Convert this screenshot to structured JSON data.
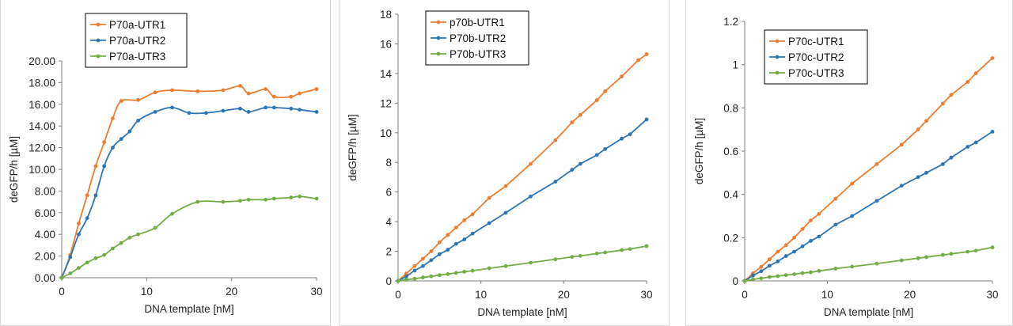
{
  "chart_data": [
    {
      "type": "line",
      "xlabel": "DNA template [nM]",
      "ylabel": "deGFP/h [µM]",
      "xlim": [
        0,
        30
      ],
      "ylim": [
        0,
        20
      ],
      "xticks": [
        0,
        10,
        20,
        30
      ],
      "yticks": [
        "0.00",
        "2.00",
        "4.00",
        "6.00",
        "8.00",
        "10.00",
        "12.00",
        "14.00",
        "16.00",
        "18.00",
        "20.00"
      ],
      "smooth": true,
      "legend": "top-left",
      "series": [
        {
          "name": "P70a-UTR1",
          "color": "#ed7d31",
          "x": [
            0,
            1,
            2,
            3,
            4,
            5,
            6,
            7,
            9,
            11,
            13,
            16,
            19,
            21,
            22,
            24,
            25,
            27,
            28,
            30
          ],
          "y": [
            0,
            2.1,
            5.0,
            7.6,
            10.3,
            12.5,
            14.7,
            16.3,
            16.4,
            17.1,
            17.3,
            17.2,
            17.3,
            17.7,
            17.0,
            17.4,
            16.7,
            16.7,
            17.0,
            17.4
          ]
        },
        {
          "name": "P70a-UTR2",
          "color": "#2e75b6",
          "x": [
            0,
            1,
            2,
            3,
            4,
            5,
            6,
            7,
            8,
            9,
            11,
            13,
            15,
            17,
            19,
            21,
            22,
            24,
            25,
            27,
            28,
            30
          ],
          "y": [
            0,
            1.9,
            4.0,
            5.5,
            7.6,
            10.3,
            12.0,
            12.8,
            13.5,
            14.5,
            15.3,
            15.7,
            15.2,
            15.2,
            15.4,
            15.6,
            15.3,
            15.7,
            15.7,
            15.6,
            15.5,
            15.3
          ]
        },
        {
          "name": "P70a-UTR3",
          "color": "#70ad47",
          "x": [
            0,
            1,
            2,
            3,
            4,
            5,
            6,
            7,
            8,
            9,
            11,
            13,
            16,
            19,
            21,
            22,
            24,
            25,
            27,
            28,
            30
          ],
          "y": [
            0,
            0.4,
            0.9,
            1.4,
            1.8,
            2.1,
            2.7,
            3.2,
            3.7,
            4.0,
            4.6,
            5.9,
            7.0,
            7.0,
            7.1,
            7.2,
            7.2,
            7.3,
            7.4,
            7.5,
            7.3
          ]
        }
      ]
    },
    {
      "type": "line",
      "xlabel": "DNA template [nM]",
      "ylabel": "deGFP/h [µM]",
      "xlim": [
        0,
        30
      ],
      "ylim": [
        0,
        18
      ],
      "xticks": [
        0,
        10,
        20,
        30
      ],
      "yticks": [
        "0",
        "2",
        "4",
        "6",
        "8",
        "10",
        "12",
        "14",
        "16",
        "18"
      ],
      "smooth": false,
      "legend": "top-left",
      "series": [
        {
          "name": "p70b-UTR1",
          "color": "#ed7d31",
          "x": [
            0,
            1,
            2,
            3,
            4,
            5,
            6,
            7,
            8,
            9,
            11,
            13,
            16,
            19,
            21,
            22,
            24,
            25,
            27,
            29,
            30
          ],
          "y": [
            0,
            0.5,
            1.0,
            1.5,
            2.0,
            2.6,
            3.1,
            3.6,
            4.1,
            4.5,
            5.6,
            6.4,
            7.9,
            9.5,
            10.7,
            11.2,
            12.2,
            12.8,
            13.8,
            14.9,
            15.3
          ]
        },
        {
          "name": "P70b-UTR2",
          "color": "#2e75b6",
          "x": [
            0,
            1,
            2,
            3,
            4,
            5,
            6,
            7,
            8,
            9,
            11,
            13,
            16,
            19,
            21,
            22,
            24,
            25,
            27,
            28,
            30
          ],
          "y": [
            0,
            0.3,
            0.7,
            1.0,
            1.4,
            1.8,
            2.1,
            2.5,
            2.8,
            3.2,
            3.9,
            4.6,
            5.7,
            6.7,
            7.5,
            7.9,
            8.5,
            8.9,
            9.6,
            9.9,
            10.9
          ]
        },
        {
          "name": "P70b-UTR3",
          "color": "#70ad47",
          "x": [
            0,
            1,
            2,
            3,
            4,
            5,
            6,
            7,
            8,
            9,
            11,
            13,
            16,
            19,
            21,
            22,
            24,
            25,
            27,
            28,
            30
          ],
          "y": [
            0,
            0.08,
            0.15,
            0.23,
            0.31,
            0.39,
            0.46,
            0.54,
            0.62,
            0.69,
            0.85,
            1.0,
            1.23,
            1.46,
            1.62,
            1.69,
            1.85,
            1.92,
            2.08,
            2.15,
            2.35
          ]
        }
      ]
    },
    {
      "type": "line",
      "xlabel": "DNA template [nM]",
      "ylabel": "deGFP/h [µM]",
      "xlim": [
        0,
        30
      ],
      "ylim": [
        0,
        1.2
      ],
      "xticks": [
        0,
        10,
        20,
        30
      ],
      "yticks": [
        "0",
        "0.2",
        "0.4",
        "0.6",
        "0.8",
        "1",
        "1.2"
      ],
      "smooth": false,
      "legend": "top-left",
      "series": [
        {
          "name": "P70c-UTR1",
          "color": "#ed7d31",
          "x": [
            0,
            1,
            2,
            3,
            4,
            5,
            6,
            7,
            8,
            9,
            11,
            13,
            16,
            19,
            21,
            22,
            24,
            25,
            27,
            28,
            30
          ],
          "y": [
            0,
            0.035,
            0.065,
            0.1,
            0.135,
            0.165,
            0.2,
            0.24,
            0.28,
            0.31,
            0.38,
            0.45,
            0.54,
            0.63,
            0.7,
            0.74,
            0.82,
            0.86,
            0.92,
            0.96,
            1.03
          ]
        },
        {
          "name": "P70c-UTR2",
          "color": "#2e75b6",
          "x": [
            0,
            1,
            2,
            3,
            4,
            5,
            6,
            7,
            8,
            9,
            11,
            13,
            16,
            19,
            21,
            22,
            24,
            25,
            27,
            28,
            30
          ],
          "y": [
            0,
            0.025,
            0.045,
            0.07,
            0.09,
            0.115,
            0.135,
            0.16,
            0.185,
            0.205,
            0.26,
            0.3,
            0.37,
            0.44,
            0.48,
            0.5,
            0.54,
            0.57,
            0.62,
            0.64,
            0.69
          ]
        },
        {
          "name": "P70c-UTR3",
          "color": "#70ad47",
          "x": [
            0,
            1,
            2,
            3,
            4,
            5,
            6,
            7,
            8,
            9,
            11,
            13,
            16,
            19,
            21,
            22,
            24,
            25,
            27,
            28,
            30
          ],
          "y": [
            0,
            0.007,
            0.012,
            0.018,
            0.022,
            0.027,
            0.031,
            0.036,
            0.04,
            0.046,
            0.057,
            0.066,
            0.08,
            0.095,
            0.105,
            0.11,
            0.12,
            0.125,
            0.135,
            0.14,
            0.155
          ]
        }
      ]
    }
  ]
}
